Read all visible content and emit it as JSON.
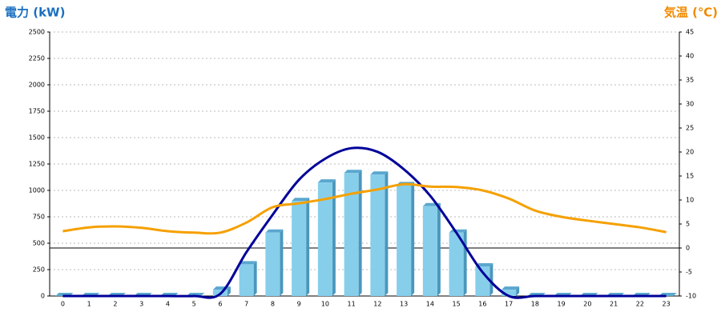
{
  "chart_data": {
    "type": "bar",
    "y_title": "電力 (kW)",
    "y2_title": "気温 (℃)",
    "categories": [
      "0",
      "1",
      "2",
      "3",
      "4",
      "5",
      "6",
      "7",
      "8",
      "9",
      "10",
      "11",
      "12",
      "13",
      "14",
      "15",
      "16",
      "17",
      "18",
      "19",
      "20",
      "21",
      "22",
      "23"
    ],
    "series": [
      {
        "type": "bar",
        "color": "#87ceeb",
        "values": [
          0,
          0,
          0,
          0,
          0,
          0,
          60,
          300,
          600,
          900,
          1075,
          1165,
          1150,
          1050,
          850,
          600,
          280,
          60,
          0,
          0,
          0,
          0,
          0,
          0
        ]
      },
      {
        "type": "line",
        "color": "#000099",
        "values": [
          0,
          0,
          0,
          0,
          0,
          0,
          20,
          415,
          770,
          1100,
          1300,
          1400,
          1365,
          1200,
          950,
          600,
          225,
          0,
          0,
          0,
          0,
          0,
          0,
          0
        ]
      },
      {
        "type": "line",
        "axis": "y2",
        "color": "#f5a000",
        "values": [
          3.5,
          4.3,
          4.5,
          4.2,
          3.5,
          3.2,
          3.2,
          5.3,
          8.5,
          9.3,
          10.2,
          11.3,
          12.2,
          13.3,
          12.8,
          12.7,
          12,
          10.3,
          7.8,
          6.5,
          5.7,
          5,
          4.3,
          3.3
        ]
      }
    ],
    "ylim": [
      0,
      2500
    ],
    "yticks": [
      0,
      250,
      500,
      750,
      1000,
      1250,
      1500,
      1750,
      2000,
      2250,
      2500
    ],
    "y2lim": [
      -10,
      45
    ],
    "y2ticks": [
      -10,
      -5,
      0,
      5,
      10,
      15,
      20,
      25,
      30,
      35,
      40,
      45
    ],
    "grid": true,
    "y2_zero_line": true
  }
}
